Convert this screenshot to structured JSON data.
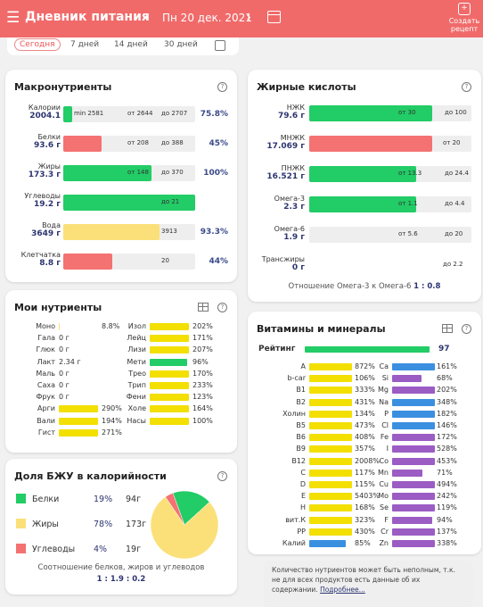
{
  "header": {
    "title": "Дневник питания",
    "date": "Пн 20 дек. 2021",
    "create_recipe": "Создать рецепт"
  },
  "tabs": [
    {
      "label": "Сегодня",
      "active": true
    },
    {
      "label": "7 дней"
    },
    {
      "label": "14 дней"
    },
    {
      "label": "30 дней"
    }
  ],
  "macros": {
    "title": "Макронутриенты",
    "help": "?",
    "rows": [
      {
        "name": "Калории",
        "value": "2004.1",
        "fill": 0.07,
        "color": "#22cc66",
        "marks": [
          "min 2581",
          "от 2644",
          "до 2707"
        ],
        "pct": "75.8%"
      },
      {
        "name": "Белки",
        "value": "93.6 г",
        "fill": 0.29,
        "color": "#f47272",
        "marks": [
          "от 208",
          "до 388"
        ],
        "pct": "45%"
      },
      {
        "name": "Жиры",
        "value": "173.3 г",
        "fill": 0.67,
        "color": "#22cc66",
        "marks": [
          "от 148",
          "до 370"
        ],
        "pct": "100%"
      },
      {
        "name": "Углеводы",
        "value": "19.2 г",
        "fill": 1.0,
        "color": "#22cc66",
        "marks": [
          "до 21"
        ],
        "pct": ""
      },
      {
        "name": "Вода",
        "value": "3649 г",
        "fill": 0.73,
        "color": "#fbe07a",
        "marks": [
          "3913"
        ],
        "pct": "93.3%"
      },
      {
        "name": "Клетчатка",
        "value": "8.8 г",
        "fill": 0.37,
        "color": "#f47272",
        "marks": [
          "20"
        ],
        "pct": "44%"
      }
    ]
  },
  "fats": {
    "title": "Жирные кислоты",
    "help": "?",
    "rows": [
      {
        "name": "НЖК",
        "value": "79.6 г",
        "fill": 0.76,
        "color": "#22cc66",
        "marks": [
          "от 30",
          "до 100"
        ]
      },
      {
        "name": "МНЖК",
        "value": "17.069 г",
        "fill": 0.76,
        "color": "#f47272",
        "marks": [
          "от 20"
        ]
      },
      {
        "name": "ПНЖК",
        "value": "16.521 г",
        "fill": 0.66,
        "color": "#22cc66",
        "marks": [
          "от 13.3",
          "до 24.4"
        ]
      },
      {
        "name": "Омега-3",
        "value": "2.3 г",
        "fill": 0.66,
        "color": "#22cc66",
        "marks": [
          "от 1.1",
          "до 4.4"
        ]
      },
      {
        "name": "Омега-6",
        "value": "1.9 г",
        "fill": 0.0,
        "color": "#22cc66",
        "marks": [
          "от 5.6",
          "до 20"
        ]
      },
      {
        "name": "Трансжиры",
        "value": "0 г",
        "fill": 0.0,
        "color": "#22cc66",
        "marks": [
          "до 2.2"
        ]
      }
    ],
    "ratio_label": "Отношение Омега-3 к Омега-6",
    "ratio_value": "1 : 0.8"
  },
  "my": {
    "title": "Мои нутриенты",
    "help": "?",
    "left": [
      {
        "n": "Моно",
        "v": "8.8%",
        "w": 0.02,
        "c": "#fbe07a"
      },
      {
        "n": "Гала",
        "v": "0 г",
        "w": 0
      },
      {
        "n": "Глюк",
        "v": "0 г",
        "w": 0
      },
      {
        "n": "Лакт",
        "v": "2.34 г",
        "w": 0
      },
      {
        "n": "Маль",
        "v": "0 г",
        "w": 0
      },
      {
        "n": "Саха",
        "v": "0 г",
        "w": 0
      },
      {
        "n": "Фрук",
        "v": "0 г",
        "w": 0
      },
      {
        "n": "Арги",
        "v": "290%",
        "w": 1,
        "c": "#f3df00"
      },
      {
        "n": "Вали",
        "v": "194%",
        "w": 1,
        "c": "#f3df00"
      },
      {
        "n": "Гист",
        "v": "271%",
        "w": 1,
        "c": "#f3df00"
      }
    ],
    "right": [
      {
        "n": "Изол",
        "v": "202%",
        "w": 1,
        "c": "#f3df00"
      },
      {
        "n": "Лейц",
        "v": "171%",
        "w": 1,
        "c": "#f3df00"
      },
      {
        "n": "Лизи",
        "v": "207%",
        "w": 1,
        "c": "#f3df00"
      },
      {
        "n": "Мети",
        "v": "96%",
        "w": 0.96,
        "c": "#22cc66"
      },
      {
        "n": "Трео",
        "v": "170%",
        "w": 1,
        "c": "#f3df00"
      },
      {
        "n": "Трип",
        "v": "233%",
        "w": 1,
        "c": "#f3df00"
      },
      {
        "n": "Фени",
        "v": "123%",
        "w": 1,
        "c": "#f3df00"
      },
      {
        "n": "Холе",
        "v": "164%",
        "w": 1,
        "c": "#f3df00"
      },
      {
        "n": "Насы",
        "v": "100%",
        "w": 1,
        "c": "#f3df00"
      }
    ]
  },
  "share": {
    "title": "Доля БЖУ в калорийности",
    "help": "?",
    "rows": [
      {
        "name": "Белки",
        "pct": "19%",
        "g": "94г",
        "color": "#22cc66",
        "frac": 19
      },
      {
        "name": "Жиры",
        "pct": "78%",
        "g": "173г",
        "color": "#fbe07a",
        "frac": 78
      },
      {
        "name": "Углеводы",
        "pct": "4%",
        "g": "19г",
        "color": "#f47272",
        "frac": 4
      }
    ],
    "ratio_label": "Соотношение белков, жиров и углеводов",
    "ratio_value": "1 : 1.9 : 0.2"
  },
  "vit": {
    "title": "Витамины и минералы",
    "help": "?",
    "rating_label": "Рейтинг",
    "rating_value": "97",
    "left": [
      {
        "n": "A",
        "v": "872%",
        "c": "#f3df00"
      },
      {
        "n": "b-car",
        "v": "106%",
        "c": "#f3df00"
      },
      {
        "n": "B1",
        "v": "333%",
        "c": "#f3df00"
      },
      {
        "n": "B2",
        "v": "431%",
        "c": "#f3df00"
      },
      {
        "n": "Холин",
        "v": "134%",
        "c": "#f3df00"
      },
      {
        "n": "B5",
        "v": "473%",
        "c": "#f3df00"
      },
      {
        "n": "B6",
        "v": "408%",
        "c": "#f3df00"
      },
      {
        "n": "B9",
        "v": "357%",
        "c": "#f3df00"
      },
      {
        "n": "B12",
        "v": "2008%",
        "c": "#f3df00"
      },
      {
        "n": "C",
        "v": "117%",
        "c": "#f3df00"
      },
      {
        "n": "D",
        "v": "115%",
        "c": "#f3df00"
      },
      {
        "n": "E",
        "v": "5403%",
        "c": "#f3df00"
      },
      {
        "n": "H",
        "v": "168%",
        "c": "#f3df00"
      },
      {
        "n": "вит.К",
        "v": "323%",
        "c": "#f3df00"
      },
      {
        "n": "PP",
        "v": "430%",
        "c": "#f3df00"
      },
      {
        "n": "Калий",
        "v": "85%",
        "c": "#3b8fe0",
        "w": 0.85
      }
    ],
    "right": [
      {
        "n": "Ca",
        "v": "161%",
        "c": "#3b8fe0"
      },
      {
        "n": "Si",
        "v": "68%",
        "c": "#9b5cc4",
        "w": 0.68
      },
      {
        "n": "Mg",
        "v": "202%",
        "c": "#9b5cc4"
      },
      {
        "n": "Na",
        "v": "348%",
        "c": "#3b8fe0"
      },
      {
        "n": "P",
        "v": "182%",
        "c": "#3b8fe0"
      },
      {
        "n": "Cl",
        "v": "146%",
        "c": "#3b8fe0"
      },
      {
        "n": "Fe",
        "v": "172%",
        "c": "#9b5cc4"
      },
      {
        "n": "I",
        "v": "528%",
        "c": "#9b5cc4"
      },
      {
        "n": "Co",
        "v": "453%",
        "c": "#9b5cc4"
      },
      {
        "n": "Mn",
        "v": "71%",
        "c": "#9b5cc4",
        "w": 0.71
      },
      {
        "n": "Cu",
        "v": "494%",
        "c": "#9b5cc4"
      },
      {
        "n": "Mo",
        "v": "242%",
        "c": "#9b5cc4"
      },
      {
        "n": "Se",
        "v": "119%",
        "c": "#9b5cc4"
      },
      {
        "n": "F",
        "v": "94%",
        "c": "#9b5cc4",
        "w": 0.94
      },
      {
        "n": "Cr",
        "v": "137%",
        "c": "#9b5cc4"
      },
      {
        "n": "Zn",
        "v": "338%",
        "c": "#9b5cc4"
      }
    ]
  },
  "note": {
    "text": "Количество нутриентов может быть неполным, т.к. не для всех продуктов есть данные об их содержании.",
    "link": "Подробнее..."
  }
}
